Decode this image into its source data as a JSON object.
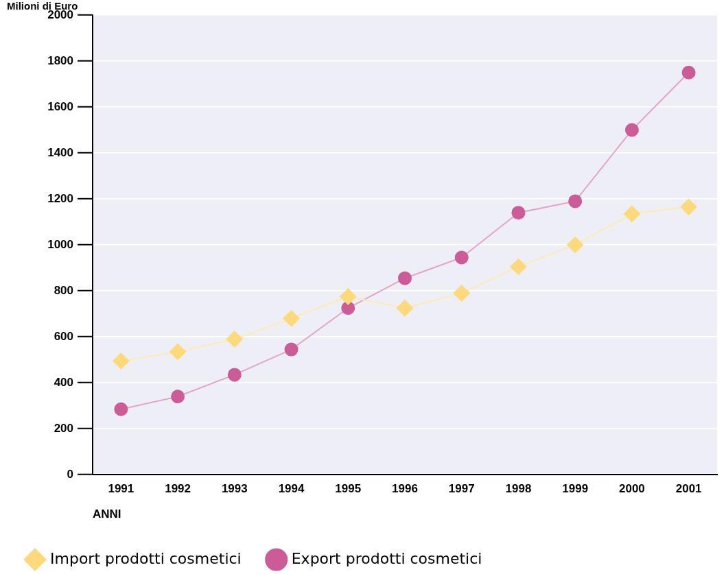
{
  "chart_data": {
    "type": "line",
    "ylabel": "Milioni di Euro",
    "xlabel": "ANNI",
    "categories": [
      "1991",
      "1992",
      "1993",
      "1994",
      "1995",
      "1996",
      "1997",
      "1998",
      "1999",
      "2000",
      "2001"
    ],
    "series": [
      {
        "name": "Import prodotti cosmetici",
        "color": "#fcd97a",
        "marker": "diamond",
        "values": [
          495,
          535,
          590,
          680,
          775,
          725,
          790,
          905,
          1000,
          1135,
          1165
        ]
      },
      {
        "name": "Export prodotti cosmetici",
        "color": "#cc5c97",
        "marker": "circle",
        "values": [
          285,
          340,
          435,
          545,
          725,
          855,
          945,
          1140,
          1190,
          1500,
          1750
        ]
      }
    ],
    "ylim": [
      0,
      2000
    ],
    "yticks": [
      0,
      200,
      400,
      600,
      800,
      1000,
      1200,
      1400,
      1600,
      1800,
      2000
    ],
    "grid": "y",
    "legend": "bottom"
  }
}
